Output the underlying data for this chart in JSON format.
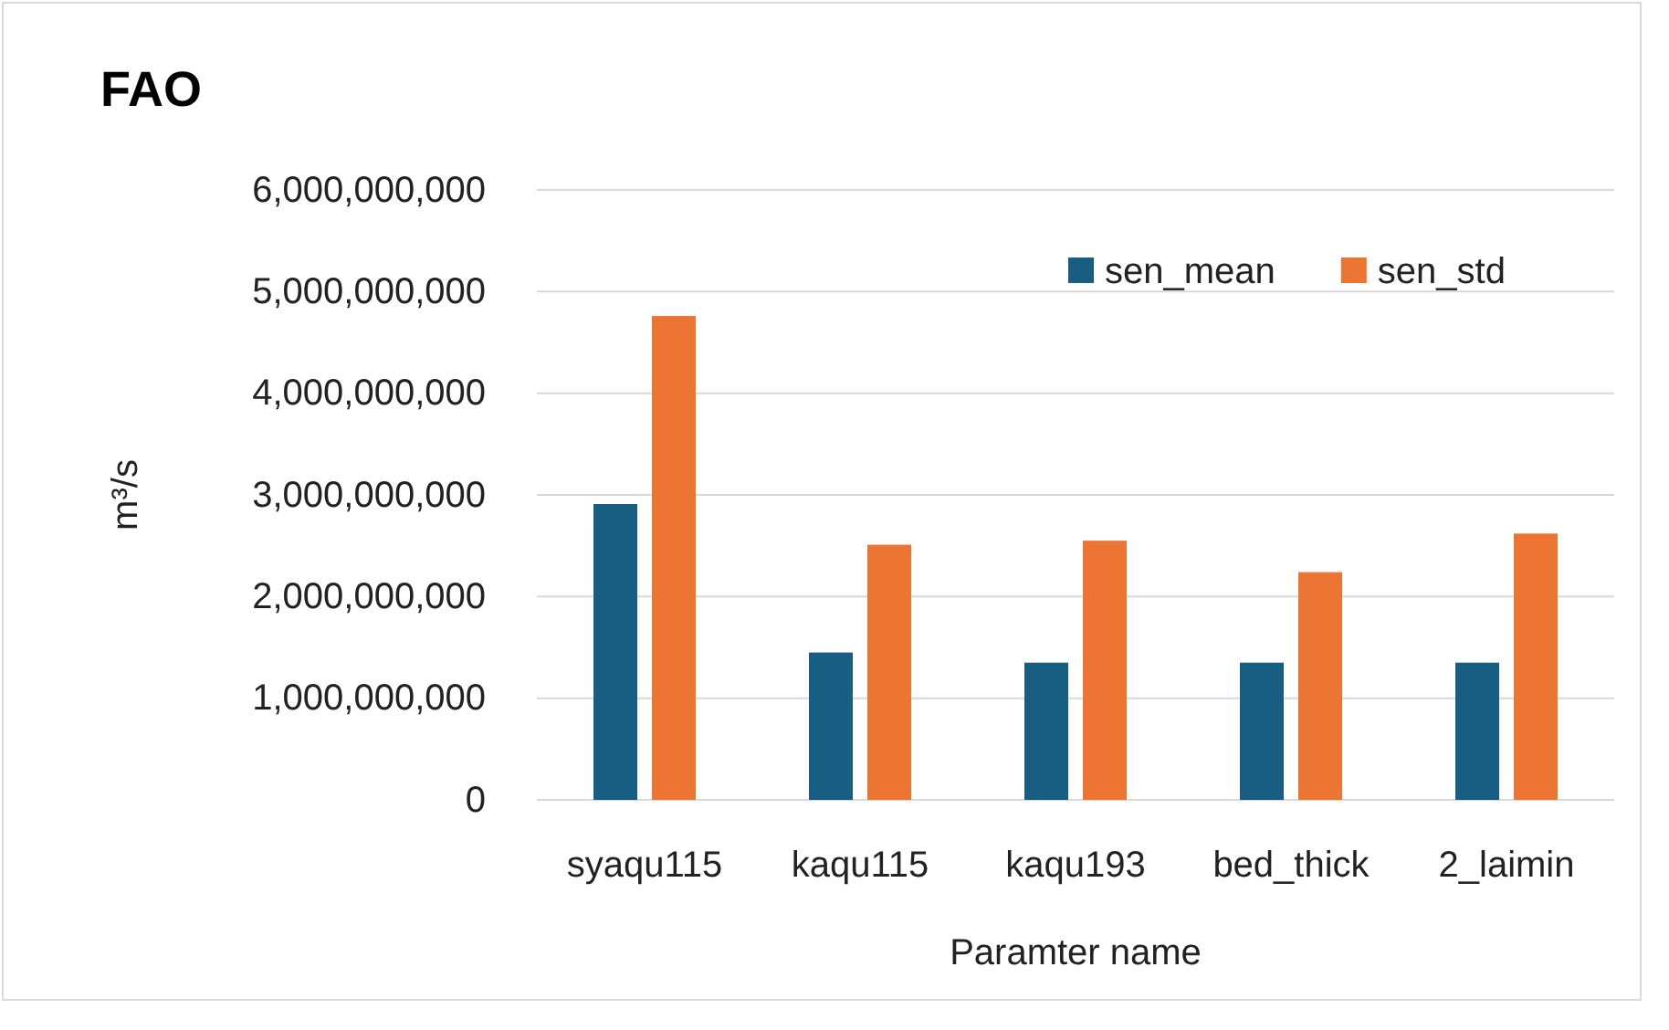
{
  "chart_data": {
    "type": "bar",
    "title": "FAO",
    "xlabel": "Paramter name",
    "ylabel": "m³/s",
    "categories": [
      "syaqu115",
      "kaqu115",
      "kaqu193",
      "bed_thick",
      "2_laimin"
    ],
    "series": [
      {
        "name": "sen_mean",
        "color": "#175e82",
        "values": [
          2910000000,
          1450000000,
          1350000000,
          1350000000,
          1350000000
        ]
      },
      {
        "name": "sen_std",
        "color": "#ed7534",
        "values": [
          4760000000,
          2510000000,
          2550000000,
          2240000000,
          2620000000
        ]
      }
    ],
    "ylim": [
      0,
      6000000000
    ],
    "yticks": [
      {
        "value": 0,
        "label": "0"
      },
      {
        "value": 1000000000,
        "label": "1,000,000,000"
      },
      {
        "value": 2000000000,
        "label": "2,000,000,000"
      },
      {
        "value": 3000000000,
        "label": "3,000,000,000"
      },
      {
        "value": 4000000000,
        "label": "4,000,000,000"
      },
      {
        "value": 5000000000,
        "label": "5,000,000,000"
      },
      {
        "value": 6000000000,
        "label": "6,000,000,000"
      }
    ],
    "grid": "y",
    "legend": "top right"
  }
}
